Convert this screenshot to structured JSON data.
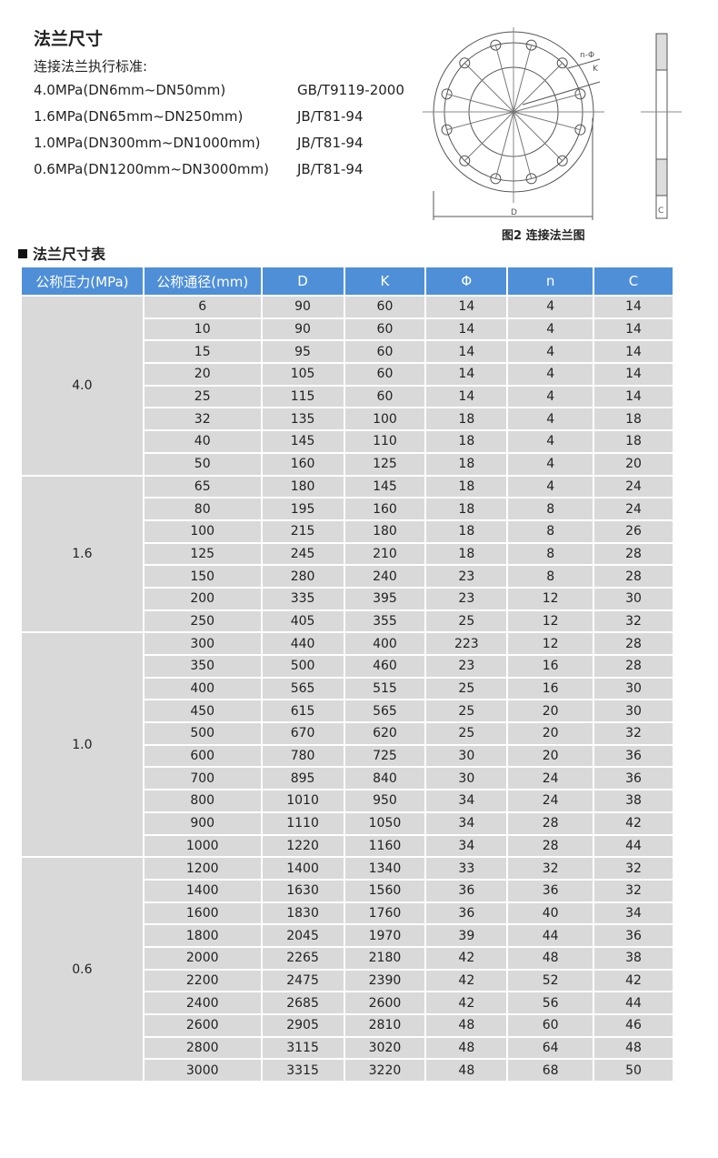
{
  "title": "法兰尺寸",
  "subtitle": "连接法兰执行标准:",
  "standards": [
    {
      "range": "4.0MPa(DN6mm~DN50mm)",
      "std": "GB/T9119-2000"
    },
    {
      "range": "1.6MPa(DN65mm~DN250mm)",
      "std": "JB/T81-94"
    },
    {
      "range": "1.0MPa(DN300mm~DN1000mm)",
      "std": "JB/T81-94"
    },
    {
      "range": "0.6MPa(DN1200mm~DN3000mm)",
      "std": "JB/T81-94"
    }
  ],
  "diagram": {
    "caption": "图2  连接法兰图",
    "label_n_phi": "n-Φ",
    "label_k": "K",
    "label_d": "D",
    "label_c": "C"
  },
  "section_title": "法兰尺寸表",
  "colors": {
    "header": "#4f8fd8",
    "cell": "#d9d9d9"
  },
  "table": {
    "headers": [
      "公称压力(MPa)",
      "公称通径(mm)",
      "D",
      "K",
      "Φ",
      "n",
      "C"
    ],
    "groups": [
      {
        "pressure": "4.0",
        "rows": [
          [
            "6",
            "90",
            "60",
            "14",
            "4",
            "14"
          ],
          [
            "10",
            "90",
            "60",
            "14",
            "4",
            "14"
          ],
          [
            "15",
            "95",
            "60",
            "14",
            "4",
            "14"
          ],
          [
            "20",
            "105",
            "60",
            "14",
            "4",
            "14"
          ],
          [
            "25",
            "115",
            "60",
            "14",
            "4",
            "14"
          ],
          [
            "32",
            "135",
            "100",
            "18",
            "4",
            "18"
          ],
          [
            "40",
            "145",
            "110",
            "18",
            "4",
            "18"
          ],
          [
            "50",
            "160",
            "125",
            "18",
            "4",
            "20"
          ]
        ]
      },
      {
        "pressure": "1.6",
        "rows": [
          [
            "65",
            "180",
            "145",
            "18",
            "4",
            "24"
          ],
          [
            "80",
            "195",
            "160",
            "18",
            "8",
            "24"
          ],
          [
            "100",
            "215",
            "180",
            "18",
            "8",
            "26"
          ],
          [
            "125",
            "245",
            "210",
            "18",
            "8",
            "28"
          ],
          [
            "150",
            "280",
            "240",
            "23",
            "8",
            "28"
          ],
          [
            "200",
            "335",
            "395",
            "23",
            "12",
            "30"
          ],
          [
            "250",
            "405",
            "355",
            "25",
            "12",
            "32"
          ]
        ]
      },
      {
        "pressure": "1.0",
        "rows": [
          [
            "300",
            "440",
            "400",
            "223",
            "12",
            "28"
          ],
          [
            "350",
            "500",
            "460",
            "23",
            "16",
            "28"
          ],
          [
            "400",
            "565",
            "515",
            "25",
            "16",
            "30"
          ],
          [
            "450",
            "615",
            "565",
            "25",
            "20",
            "30"
          ],
          [
            "500",
            "670",
            "620",
            "25",
            "20",
            "32"
          ],
          [
            "600",
            "780",
            "725",
            "30",
            "20",
            "36"
          ],
          [
            "700",
            "895",
            "840",
            "30",
            "24",
            "36"
          ],
          [
            "800",
            "1010",
            "950",
            "34",
            "24",
            "38"
          ],
          [
            "900",
            "1110",
            "1050",
            "34",
            "28",
            "42"
          ],
          [
            "1000",
            "1220",
            "1160",
            "34",
            "28",
            "44"
          ]
        ]
      },
      {
        "pressure": "0.6",
        "rows": [
          [
            "1200",
            "1400",
            "1340",
            "33",
            "32",
            "32"
          ],
          [
            "1400",
            "1630",
            "1560",
            "36",
            "36",
            "32"
          ],
          [
            "1600",
            "1830",
            "1760",
            "36",
            "40",
            "34"
          ],
          [
            "1800",
            "2045",
            "1970",
            "39",
            "44",
            "36"
          ],
          [
            "2000",
            "2265",
            "2180",
            "42",
            "48",
            "38"
          ],
          [
            "2200",
            "2475",
            "2390",
            "42",
            "52",
            "42"
          ],
          [
            "2400",
            "2685",
            "2600",
            "42",
            "56",
            "44"
          ],
          [
            "2600",
            "2905",
            "2810",
            "48",
            "60",
            "46"
          ],
          [
            "2800",
            "3115",
            "3020",
            "48",
            "64",
            "48"
          ],
          [
            "3000",
            "3315",
            "3220",
            "48",
            "68",
            "50"
          ]
        ]
      }
    ]
  }
}
